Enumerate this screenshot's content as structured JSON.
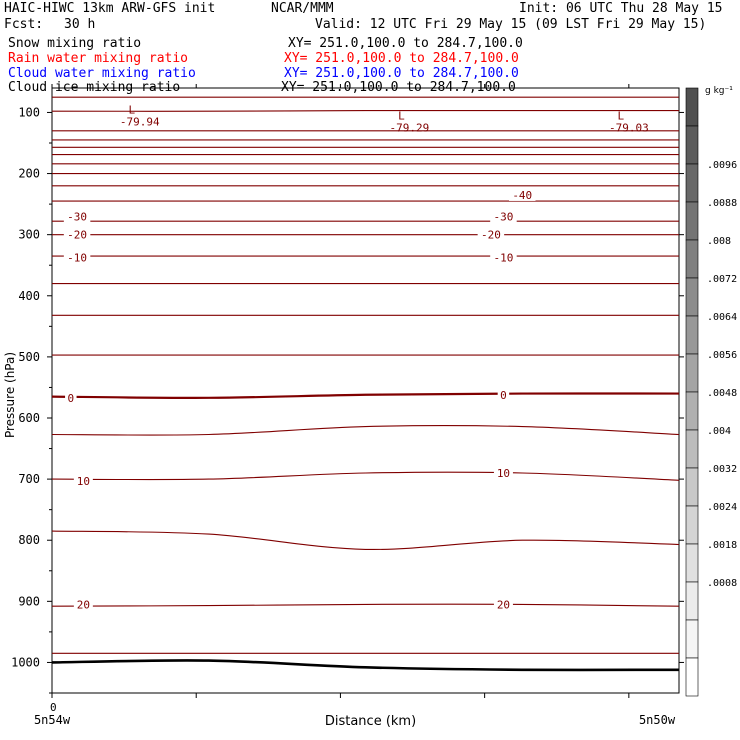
{
  "header": {
    "model_title": "HAIC-HIWC 13km ARW-GFS init",
    "org": "NCAR/MMM",
    "init": "Init: 06 UTC Thu 28 May 15",
    "fcst_label": "Fcst:",
    "fcst_value": "30 h",
    "valid": "Valid: 12 UTC Fri 29 May 15 (09 LST Fri 29 May 15)"
  },
  "fields": [
    {
      "name": "Snow mixing ratio",
      "xy": "XY= 251.0,100.0 to 284.7,100.0",
      "color": "#000000"
    },
    {
      "name": "Rain water mixing ratio",
      "xy": "XY= 251.0,100.0 to 284.7,100.0",
      "color": "#ff0000"
    },
    {
      "name": "Cloud water mixing ratio",
      "xy": "XY= 251.0,100.0 to 284.7,100.0",
      "color": "#0000ff"
    },
    {
      "name": "Cloud ice mixing ratio",
      "xy": "XY= 251.0,100.0 to 284.7,100.0",
      "color": "#000000"
    }
  ],
  "chart_data": {
    "type": "line",
    "ylabel": "Pressure (hPa)",
    "xlabel": "Distance (km)",
    "y_ticks": [
      100,
      200,
      300,
      400,
      500,
      600,
      700,
      800,
      900,
      1000
    ],
    "ylim": [
      1050,
      60
    ],
    "x_tick_zero": "0",
    "x_left_label": "5n54w",
    "x_right_label": "5n50w",
    "contour_color": "#800000",
    "ground_color": "#000000",
    "contours": [
      {
        "y": [
          75,
          75,
          75,
          75,
          75
        ]
      },
      {
        "y": [
          98,
          98,
          97,
          97,
          97
        ]
      },
      {
        "y": [
          130,
          130,
          130,
          130,
          130
        ]
      },
      {
        "y": [
          145,
          145,
          145,
          145,
          145
        ]
      },
      {
        "y": [
          157,
          157,
          157,
          157,
          157
        ]
      },
      {
        "y": [
          169,
          169,
          169,
          169,
          169
        ]
      },
      {
        "y": [
          184,
          184,
          184,
          184,
          184
        ]
      },
      {
        "y": [
          200,
          200,
          200,
          200,
          200
        ]
      },
      {
        "y": [
          220,
          220,
          220,
          220,
          220
        ]
      },
      {
        "y": [
          245,
          245,
          245,
          245,
          245
        ]
      },
      {
        "y": [
          278,
          278,
          278,
          278,
          278
        ]
      },
      {
        "y": [
          300,
          300,
          300,
          300,
          300
        ]
      },
      {
        "y": [
          335,
          335,
          335,
          335,
          335
        ]
      },
      {
        "y": [
          380,
          380,
          380,
          380,
          380
        ]
      },
      {
        "y": [
          432,
          432,
          432,
          432,
          432
        ]
      },
      {
        "y": [
          497,
          497,
          497,
          497,
          497
        ]
      },
      {
        "y": [
          565,
          567,
          562,
          560,
          560
        ],
        "thick": true
      },
      {
        "y": [
          627,
          627,
          614,
          614,
          627
        ]
      },
      {
        "y": [
          700,
          700,
          690,
          690,
          702
        ]
      },
      {
        "y": [
          785,
          790,
          815,
          800,
          807
        ]
      },
      {
        "y": [
          908,
          907,
          905,
          905,
          908
        ]
      },
      {
        "y": [
          985,
          985,
          985,
          985,
          985
        ]
      }
    ],
    "ground": {
      "y": [
        1000,
        997,
        1008,
        1012,
        1012
      ]
    },
    "contour_labels": [
      {
        "text": "-40",
        "p": 235,
        "xf": 0.75
      },
      {
        "text": "-30",
        "p": 270,
        "xf": 0.04
      },
      {
        "text": "-30",
        "p": 270,
        "xf": 0.72
      },
      {
        "text": "-20",
        "p": 300,
        "xf": 0.04
      },
      {
        "text": "-20",
        "p": 300,
        "xf": 0.7
      },
      {
        "text": "-10",
        "p": 337,
        "xf": 0.04
      },
      {
        "text": "-10",
        "p": 337,
        "xf": 0.72
      },
      {
        "text": "0",
        "p": 567,
        "xf": 0.03
      },
      {
        "text": "0",
        "p": 562,
        "xf": 0.72
      },
      {
        "text": "10",
        "p": 703,
        "xf": 0.05
      },
      {
        "text": "10",
        "p": 690,
        "xf": 0.72
      },
      {
        "text": "20",
        "p": 905,
        "xf": 0.05
      },
      {
        "text": "20",
        "p": 905,
        "xf": 0.72
      }
    ],
    "lows": [
      {
        "letter": "L",
        "value": "-79.94",
        "p": 110,
        "xf": 0.14
      },
      {
        "letter": "L",
        "value": "-79.29",
        "p": 120,
        "xf": 0.57
      },
      {
        "letter": "L",
        "value": "-79.03",
        "p": 120,
        "xf": 0.92
      }
    ],
    "colorbar": {
      "unit": "g kg⁻¹",
      "labels": [
        ".0096",
        ".0088",
        ".008",
        ".0072",
        ".0064",
        ".0056",
        ".0048",
        ".004",
        ".0032",
        ".0024",
        ".0018",
        ".0008"
      ],
      "colors": [
        "#505050",
        "#5c5c5c",
        "#686868",
        "#747474",
        "#808080",
        "#8c8c8c",
        "#989898",
        "#a4a4a4",
        "#b0b0b0",
        "#bcbcbc",
        "#c8c8c8",
        "#d4d4d4",
        "#e0e0e0",
        "#ececec",
        "#f5f5f5",
        "#ffffff"
      ]
    }
  }
}
